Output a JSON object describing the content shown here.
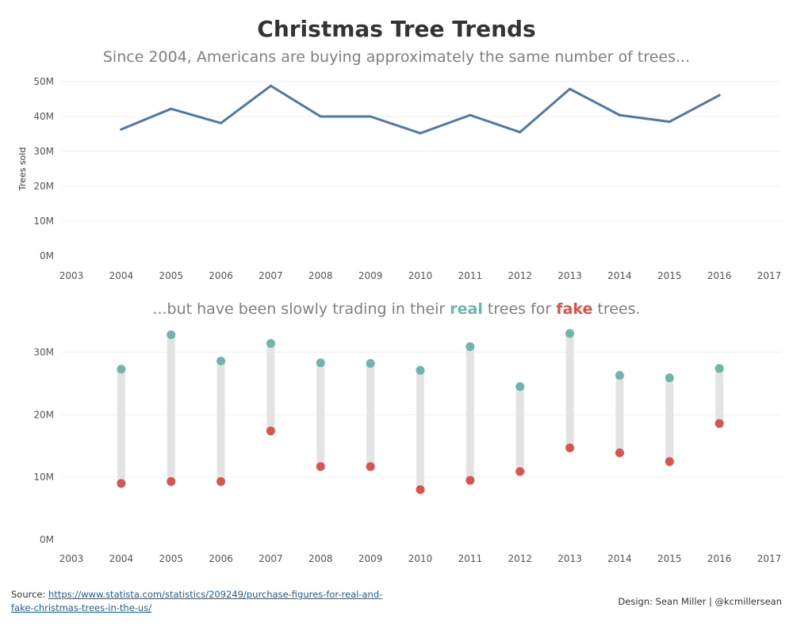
{
  "title": "Christmas Tree Trends",
  "subtitle_top": "Since 2004, Americans are buying approximately the same number of trees...",
  "subtitle_bottom": {
    "prefix": "...but have been slowly trading in their ",
    "real": "real",
    "middle": " trees for ",
    "fake": "fake",
    "suffix": " trees."
  },
  "footer": {
    "source_label": "Source:",
    "source_link": "https://www.statista.com/statistics/209249/purchase-figures-for-real-and-fake-christmas-trees-in-the-us/",
    "design": "Design: Sean Miller | @kcmillersean"
  },
  "colors": {
    "line": "#4e79a7",
    "real": "#6fb5ac",
    "fake": "#d9534f",
    "bar": "#e3e3e3",
    "grid": "#efefef"
  },
  "chart_data": [
    {
      "type": "line",
      "title": "Since 2004, Americans are buying approximately the same number of trees...",
      "xlabel": "",
      "ylabel": "Trees sold",
      "x_ticks": [
        "2003",
        "2004",
        "2005",
        "2006",
        "2007",
        "2008",
        "2009",
        "2010",
        "2011",
        "2012",
        "2013",
        "2014",
        "2015",
        "2016",
        "2017"
      ],
      "y_ticks": [
        "0M",
        "10M",
        "20M",
        "30M",
        "40M",
        "50M"
      ],
      "ylim": [
        0,
        50
      ],
      "xlim": [
        2003,
        2017
      ],
      "grid": true,
      "series": [
        {
          "name": "Trees sold (M)",
          "x": [
            2004,
            2005,
            2006,
            2007,
            2008,
            2009,
            2010,
            2011,
            2012,
            2013,
            2014,
            2015,
            2016
          ],
          "values": [
            36.3,
            42.2,
            38.1,
            48.8,
            40.0,
            40.0,
            35.2,
            40.4,
            35.5,
            47.9,
            40.4,
            38.5,
            46.1
          ]
        }
      ]
    },
    {
      "type": "dumbbell",
      "title": "...but have been slowly trading in their real trees for fake trees.",
      "xlabel": "",
      "ylabel": "",
      "x_ticks": [
        "2003",
        "2004",
        "2005",
        "2006",
        "2007",
        "2008",
        "2009",
        "2010",
        "2011",
        "2012",
        "2013",
        "2014",
        "2015",
        "2016",
        "2017"
      ],
      "y_ticks": [
        "0M",
        "10M",
        "20M",
        "30M"
      ],
      "ylim": [
        0,
        35
      ],
      "xlim": [
        2003,
        2017
      ],
      "grid": true,
      "x": [
        2004,
        2005,
        2006,
        2007,
        2008,
        2009,
        2010,
        2011,
        2012,
        2013,
        2014,
        2015,
        2016
      ],
      "series": [
        {
          "name": "real",
          "values": [
            27.3,
            32.8,
            28.6,
            31.4,
            28.3,
            28.2,
            27.1,
            30.9,
            24.5,
            33.0,
            26.3,
            25.9,
            27.4
          ]
        },
        {
          "name": "fake",
          "values": [
            9.0,
            9.3,
            9.3,
            17.4,
            11.7,
            11.7,
            8.0,
            9.5,
            10.9,
            14.7,
            13.9,
            12.5,
            18.6
          ]
        }
      ]
    }
  ]
}
